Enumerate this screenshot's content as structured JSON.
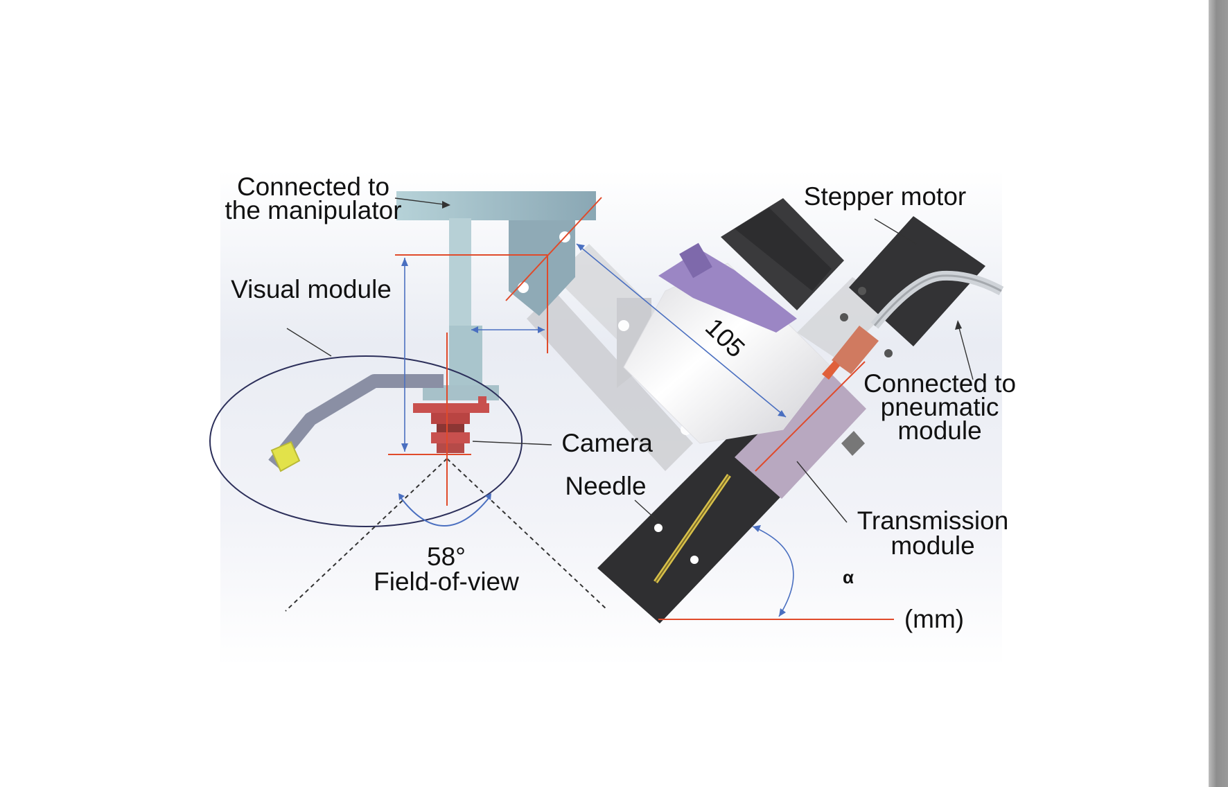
{
  "figure": {
    "labels": {
      "manipulator_line1": "Connected to",
      "manipulator_line2": "the manipulator",
      "visual_module": "Visual module",
      "camera": "Camera",
      "needle": "Needle",
      "fov_angle": "58°",
      "fov_text": "Field-of-view",
      "stepper_motor": "Stepper motor",
      "pneumatic_line1": "Connected to",
      "pneumatic_line2": "pneumatic",
      "pneumatic_line3": "module",
      "transmission_line1": "Transmission",
      "transmission_line2": "module",
      "dimension_105": "105",
      "alpha": "α",
      "units": "(mm)"
    },
    "colors": {
      "bracket": "#9fbcc6",
      "red_lines": "#e04a2a",
      "blue_dims": "#4a6fc0",
      "camera": "#c8504e",
      "motor": "#3a3a3c",
      "purple_flange": "#9b86c4",
      "housing": "#b8a8c0",
      "needle_plate": "#2f2f31",
      "copper": "#d07a60",
      "yellow_tip": "#e2e24a"
    }
  }
}
